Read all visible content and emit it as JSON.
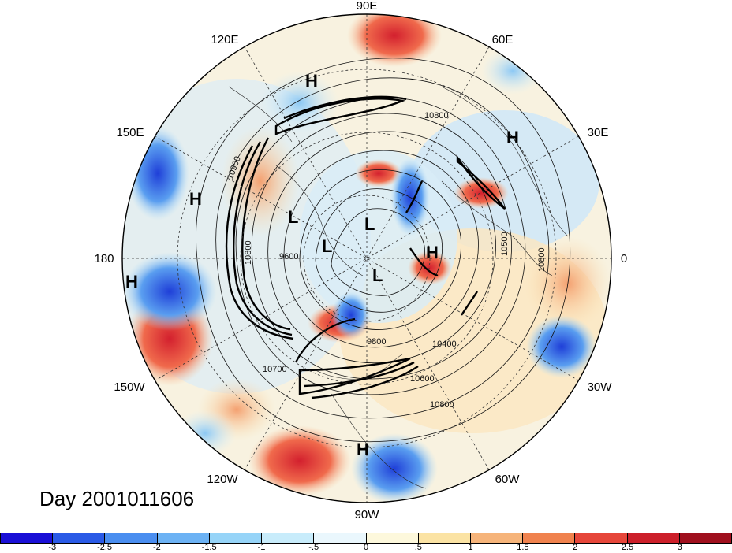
{
  "map": {
    "title": "Day 2001011606",
    "longitude_labels": [
      {
        "id": "lon-90e",
        "text": "90E"
      },
      {
        "id": "lon-60e",
        "text": "60E"
      },
      {
        "id": "lon-30e",
        "text": "30E"
      },
      {
        "id": "lon-0",
        "text": "0"
      },
      {
        "id": "lon-30w",
        "text": "30W"
      },
      {
        "id": "lon-60w",
        "text": "60W"
      },
      {
        "id": "lon-90w",
        "text": "90W"
      },
      {
        "id": "lon-120w",
        "text": "120W"
      },
      {
        "id": "lon-150w",
        "text": "150W"
      },
      {
        "id": "lon-180",
        "text": "180"
      },
      {
        "id": "lon-150e",
        "text": "150E"
      },
      {
        "id": "lon-120e",
        "text": "120E"
      }
    ],
    "pressure_centers": [
      {
        "id": "h-siberia",
        "text": "H"
      },
      {
        "id": "h-europe",
        "text": "H"
      },
      {
        "id": "h-kamchatka",
        "text": "H"
      },
      {
        "id": "h-pacific",
        "text": "H"
      },
      {
        "id": "h-arctic",
        "text": "H"
      },
      {
        "id": "h-central-america",
        "text": "H"
      },
      {
        "id": "l-east-siberia",
        "text": "L"
      },
      {
        "id": "l-pole",
        "text": "L"
      },
      {
        "id": "l-kara",
        "text": "L"
      },
      {
        "id": "l-greenland",
        "text": "L"
      }
    ],
    "contour_labels": [
      {
        "id": "c-10800-top",
        "text": "10800"
      },
      {
        "id": "c-10900",
        "text": "10900"
      },
      {
        "id": "c-10500",
        "text": "10500"
      },
      {
        "id": "c-10800-right",
        "text": "10800"
      },
      {
        "id": "c-9600",
        "text": "9600"
      },
      {
        "id": "c-9800",
        "text": "9800"
      },
      {
        "id": "c-10400",
        "text": "10400"
      },
      {
        "id": "c-10600",
        "text": "10600"
      },
      {
        "id": "c-10700",
        "text": "10700"
      },
      {
        "id": "c-10800-bottom",
        "text": "10800"
      },
      {
        "id": "c-10800-left",
        "text": "10800"
      }
    ]
  },
  "colorbar": {
    "colors": [
      "#1a0fd6",
      "#2a5ae6",
      "#4a8ef0",
      "#6cb2f4",
      "#96d4f8",
      "#c8ecfb",
      "#eaf7fd",
      "#fdf8dc",
      "#fbe3a4",
      "#f6b47a",
      "#f0824e",
      "#e6463a",
      "#cc1f2a",
      "#a0101e"
    ],
    "ticks": [
      "-3",
      "-2.5",
      "-2",
      "-1.5",
      "-1",
      "-.5",
      "0",
      ".5",
      "1",
      "1.5",
      "2",
      "2.5",
      "3"
    ]
  }
}
